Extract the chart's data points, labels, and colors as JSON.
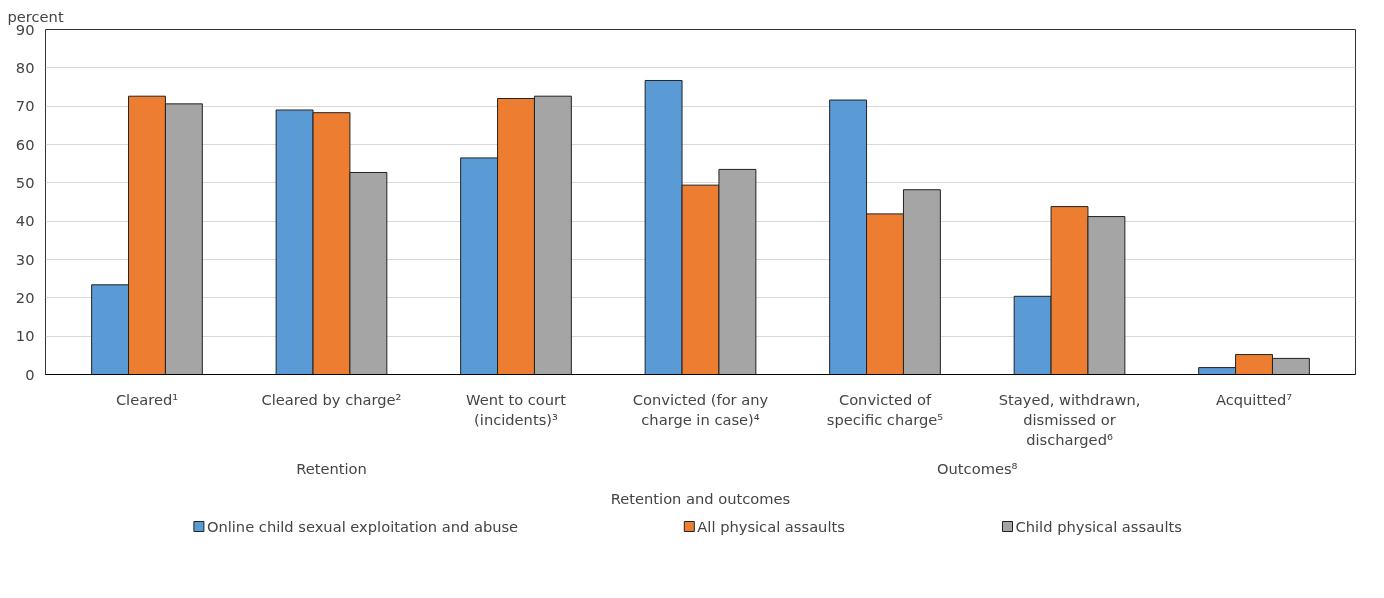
{
  "chart_data": {
    "type": "bar",
    "ylabel": "percent",
    "xlabel": "Retention and outcomes",
    "categories": [
      "Cleared¹",
      "Cleared by charge²",
      "Went to court (incidents)³",
      "Convicted (for any charge in case)⁴",
      "Convicted of specific charge⁵",
      "Stayed, withdrawn, dismissed or discharged⁶",
      "Acquitted⁷"
    ],
    "series": [
      {
        "name": "Online child sexual exploitation and abuse",
        "color": "#5b9bd5",
        "values": [
          23.4,
          69.0,
          56.5,
          76.7,
          71.6,
          20.4,
          1.8
        ]
      },
      {
        "name": "All physical assaults",
        "color": "#ed7d31",
        "values": [
          72.6,
          68.3,
          72.0,
          49.4,
          41.9,
          43.8,
          5.2
        ]
      },
      {
        "name": "Child physical assaults",
        "color": "#a5a5a5",
        "values": [
          70.6,
          52.7,
          72.6,
          53.5,
          48.2,
          41.2,
          4.2
        ]
      }
    ],
    "annotations": [
      "Retention",
      "Outcomes⁸"
    ],
    "ylim": [
      0,
      90
    ],
    "yticks": [
      0,
      10,
      20,
      30,
      40,
      50,
      60,
      70,
      80,
      90
    ],
    "grid": "y",
    "legend": "bottom"
  }
}
